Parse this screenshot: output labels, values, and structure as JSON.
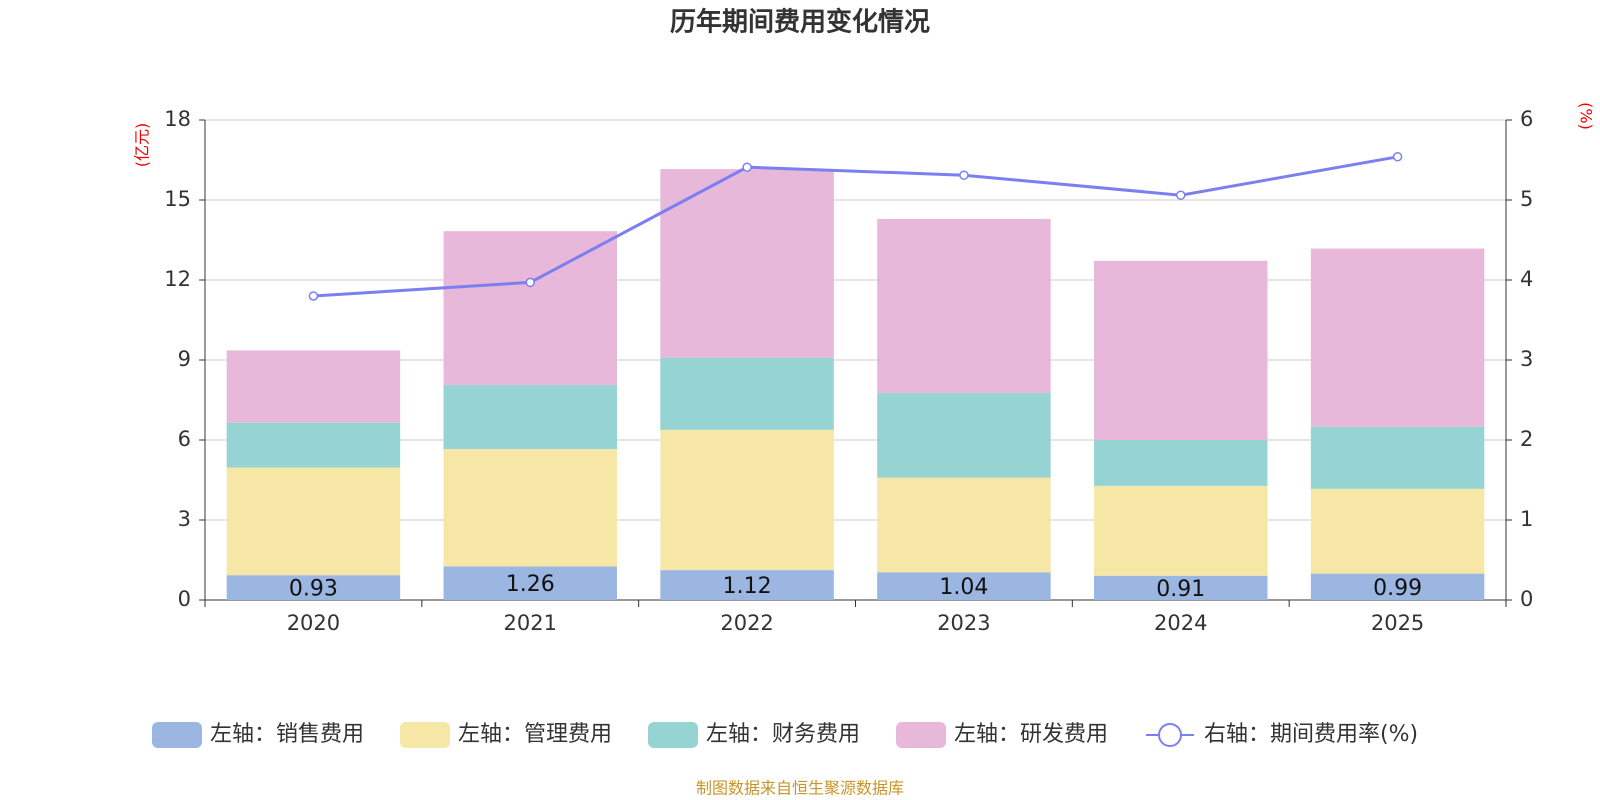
{
  "chart_data": {
    "type": "bar",
    "title": "历年期间费用变化情况",
    "y_label": "(亿元)",
    "y2_label": "(%)",
    "source": "制图数据来自恒生聚源数据库",
    "categories": [
      "2020",
      "2021",
      "2022",
      "2023",
      "2024",
      "2025"
    ],
    "stacked": true,
    "grid": true,
    "ylim": [
      0,
      18
    ],
    "yticks": [
      0,
      3,
      6,
      9,
      12,
      15,
      18
    ],
    "y2lim": [
      0,
      6
    ],
    "y2ticks": [
      0,
      1,
      2,
      3,
      4,
      5,
      6
    ],
    "series": [
      {
        "name": "左轴：销售费用",
        "color": "#9bb6e0",
        "values": [
          0.93,
          1.26,
          1.12,
          1.04,
          0.91,
          0.99
        ],
        "show_labels": true
      },
      {
        "name": "左轴：管理费用",
        "color": "#f7e7a7",
        "values": [
          4.04,
          4.4,
          5.26,
          3.55,
          3.37,
          3.18
        ]
      },
      {
        "name": "左轴：财务费用",
        "color": "#96d3d3",
        "values": [
          1.68,
          2.4,
          2.71,
          3.17,
          1.72,
          2.33
        ]
      },
      {
        "name": "左轴：研发费用",
        "color": "#e7b8d9",
        "values": [
          2.71,
          5.77,
          7.07,
          6.53,
          6.72,
          6.68
        ]
      },
      {
        "name": "右轴：期间费用率(%)",
        "color": "#7b7ff0",
        "type": "line",
        "axis": "y2",
        "values": [
          3.8,
          3.97,
          5.41,
          5.31,
          5.06,
          5.54
        ]
      }
    ]
  }
}
